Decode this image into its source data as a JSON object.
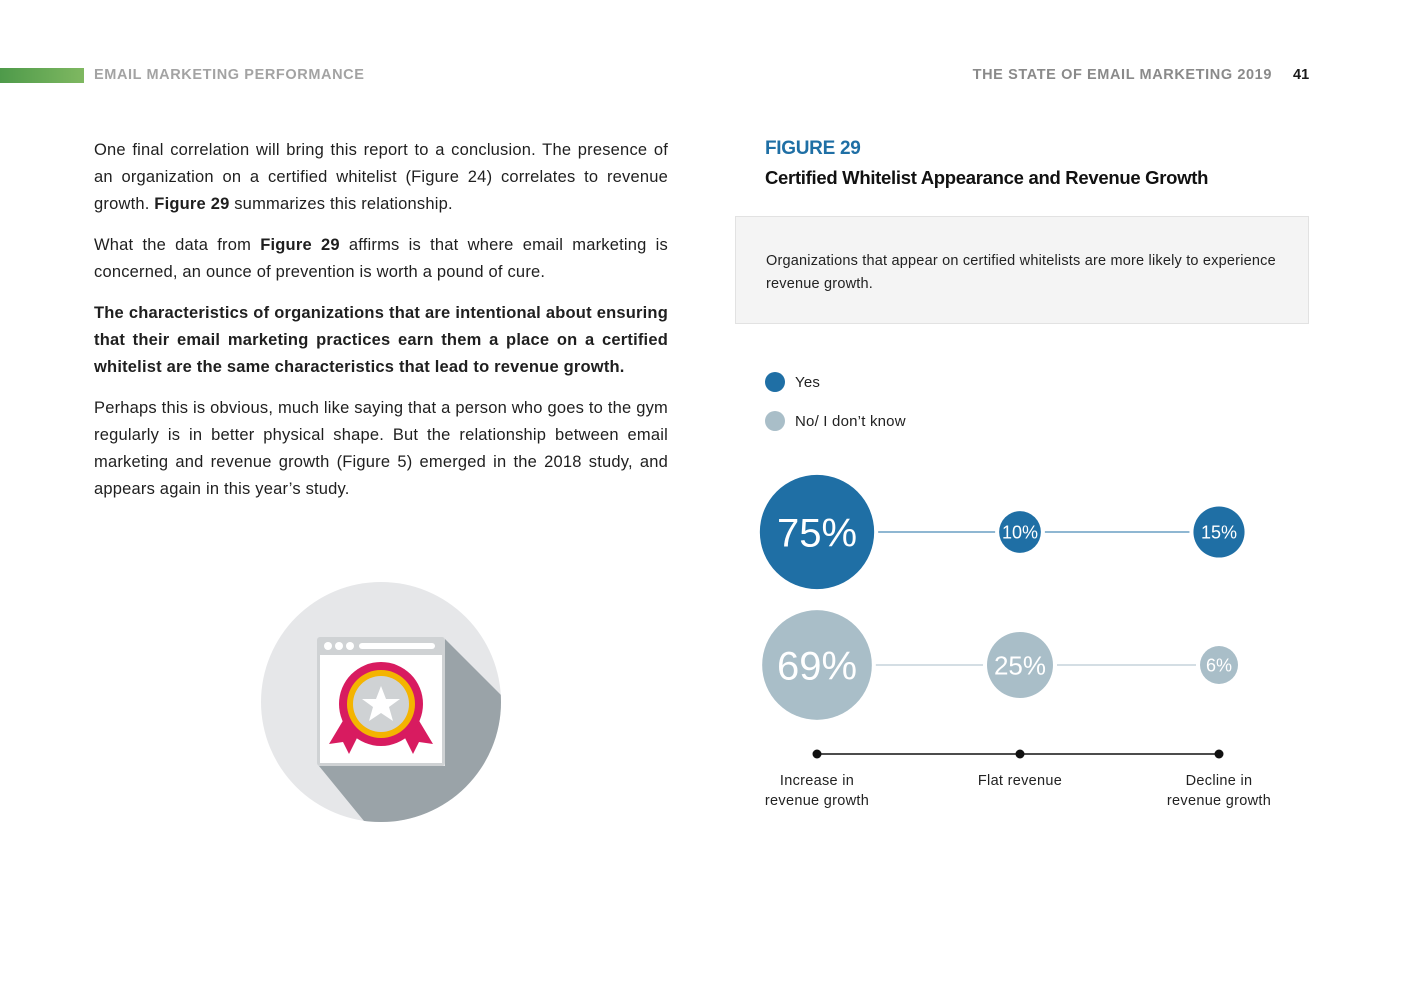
{
  "header": {
    "section": "EMAIL MARKETING PERFORMANCE",
    "report": "THE STATE OF EMAIL MARKETING 2019",
    "page": "41"
  },
  "body": {
    "p1_a": "One final correlation will bring this report to a conclusion. The presence of an organization on a certified whitelist (Figure 24) correlates to revenue growth. ",
    "p1_bold": "Figure 29",
    "p1_b": " summarizes this relationship.",
    "p2_a": "What the data from ",
    "p2_bold": "Figure 29",
    "p2_b": " affirms is that where email marketing is concerned, an ounce of prevention is worth a pound of cure.",
    "p3": "The characteristics of organizations that are intentional about ensuring that their email marketing practices earn them a place on a certified whitelist are the same characteristics that lead to revenue growth.",
    "p4": "Perhaps this is obvious, much like saying that a person who goes to the gym regularly is in better physical shape. But the relationship between email marketing and revenue growth (Figure 5) emerged in the 2018 study, and appears again in this year’s study."
  },
  "figure": {
    "label": "FIGURE 29",
    "title": "Certified Whitelist Appearance and Revenue Growth",
    "summary": "Organizations that appear on certified whitelists are more likely to experience revenue growth."
  },
  "colors": {
    "yes": "#1f6fa5",
    "no": "#a9bec8",
    "accent_green": "#5fa552"
  },
  "icons": [
    "certificate-badge-icon"
  ],
  "chart_data": {
    "type": "bubble",
    "categories": [
      "Increase in revenue growth",
      "Flat revenue",
      "Decline in revenue growth"
    ],
    "series": [
      {
        "name": "Yes",
        "values": [
          75,
          10,
          15
        ],
        "labels": [
          "75%",
          "10%",
          "15%"
        ]
      },
      {
        "name": "No/ I don’t know",
        "values": [
          69,
          25,
          6
        ],
        "labels": [
          "69%",
          "25%",
          "6%"
        ]
      }
    ],
    "legend": "top-left"
  }
}
